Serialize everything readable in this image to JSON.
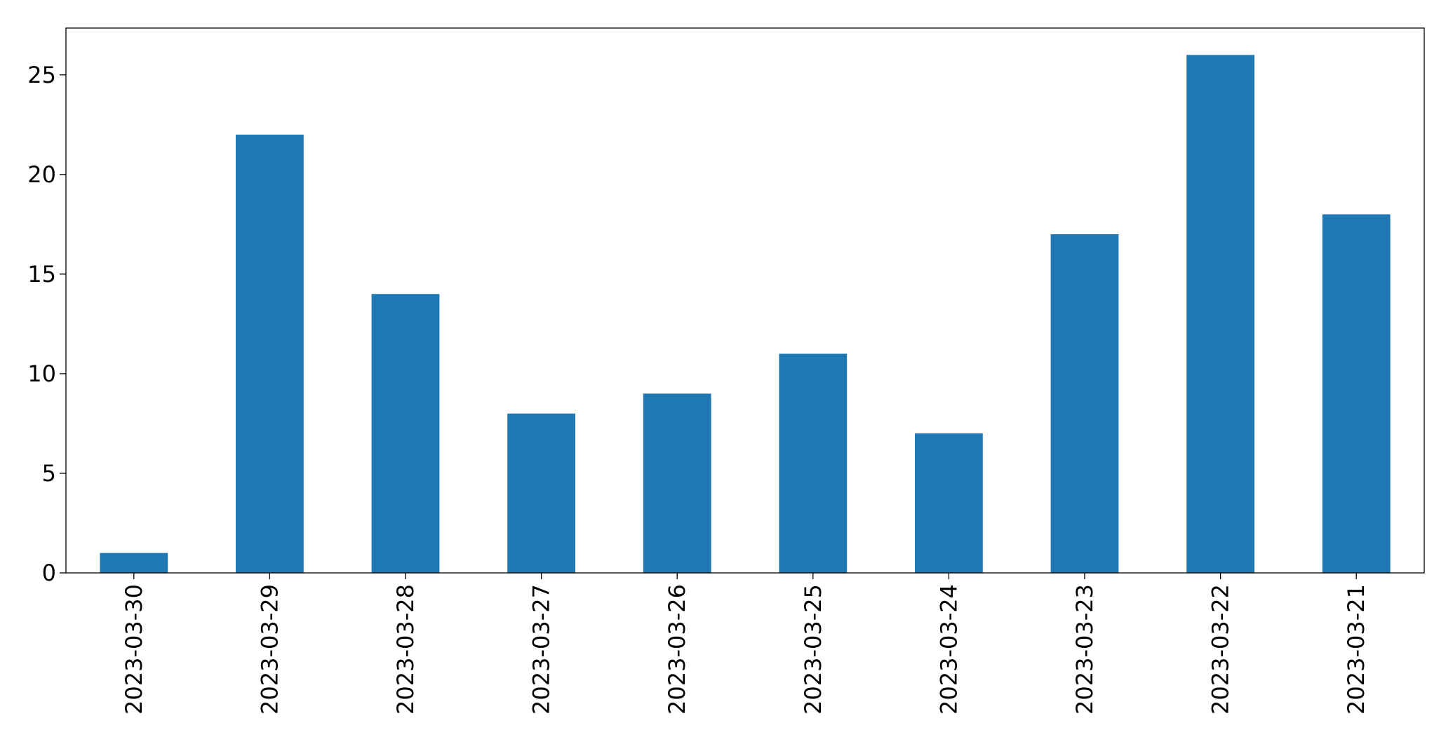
{
  "chart_data": {
    "type": "bar",
    "categories": [
      "2023-03-30",
      "2023-03-29",
      "2023-03-28",
      "2023-03-27",
      "2023-03-26",
      "2023-03-25",
      "2023-03-24",
      "2023-03-23",
      "2023-03-22",
      "2023-03-21"
    ],
    "values": [
      1,
      22,
      14,
      8,
      9,
      11,
      7,
      17,
      26,
      18
    ],
    "color": "#1f77b4",
    "ylim": [
      0,
      27.35
    ],
    "yticks": [
      0,
      5,
      10,
      15,
      20,
      25
    ],
    "grid": false
  }
}
